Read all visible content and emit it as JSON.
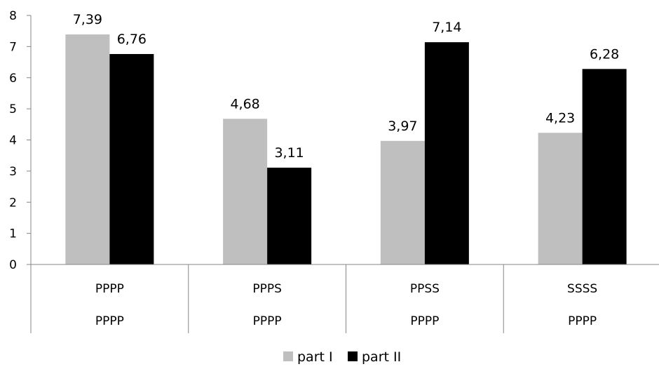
{
  "chart_data": {
    "type": "bar",
    "categories": [
      [
        "PPPP",
        "PPPP"
      ],
      [
        "PPPS",
        "PPPP"
      ],
      [
        "PPSS",
        "PPPP"
      ],
      [
        "SSSS",
        "PPPP"
      ]
    ],
    "series": [
      {
        "name": "part I",
        "color": "#bfbfbf",
        "values": [
          7.39,
          4.68,
          3.97,
          4.23
        ],
        "labels": [
          "7,39",
          "4,68",
          "3,97",
          "4,23"
        ]
      },
      {
        "name": "part II",
        "color": "#000000",
        "values": [
          6.76,
          3.11,
          7.14,
          6.28
        ],
        "labels": [
          "6,76",
          "3,11",
          "7,14",
          "6,28"
        ]
      }
    ],
    "yticks": [
      "0",
      "1",
      "2",
      "3",
      "4",
      "5",
      "6",
      "7",
      "8"
    ],
    "ylim": [
      0,
      8
    ],
    "grid": false,
    "legend_position": "bottom",
    "title": "",
    "xlabel": "",
    "ylabel": ""
  }
}
